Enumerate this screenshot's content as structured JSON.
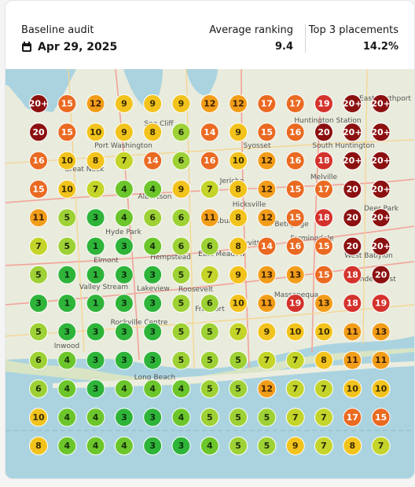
{
  "header": {
    "audit_label": "Baseline audit",
    "date": "Apr 29, 2025",
    "avg_label": "Average ranking",
    "avg_value": "9.4",
    "top3_label": "Top 3 placements",
    "top3_value": "14.2%"
  },
  "map": {
    "places": [
      "Port Washington",
      "Great Neck",
      "Sea Cliff",
      "Syosset",
      "Huntington Station",
      "South Huntington",
      "Jericho",
      "Hicksville",
      "Melville",
      "Albertson",
      "Salisbury",
      "Hyde Park",
      "Elmont",
      "Hempstead",
      "East Meadow",
      "Levittown",
      "Old Bethpage",
      "Farmingdale",
      "West Babylon",
      "Lindenhurst",
      "Massapequa",
      "Valley Stream",
      "Lakeview",
      "Roosevelt",
      "Rockville Centre",
      "Freeport",
      "Inwood",
      "Long Beach",
      "Deer Park",
      "East Northport"
    ],
    "grid": [
      [
        "20+",
        "15",
        "12",
        "9",
        "9",
        "9",
        "12",
        "12",
        "17",
        "17",
        "19",
        "20+",
        "20+"
      ],
      [
        "20",
        "15",
        "10",
        "9",
        "8",
        "6",
        "14",
        "9",
        "15",
        "16",
        "20",
        "20+",
        "20+"
      ],
      [
        "16",
        "10",
        "8",
        "7",
        "14",
        "6",
        "16",
        "10",
        "12",
        "16",
        "18",
        "20+",
        "20+"
      ],
      [
        "15",
        "10",
        "7",
        "4",
        "4",
        "9",
        "7",
        "8",
        "12",
        "15",
        "17",
        "20",
        "20+"
      ],
      [
        "11",
        "5",
        "3",
        "4",
        "6",
        "6",
        "11",
        "8",
        "12",
        "15",
        "18",
        "20",
        "20+"
      ],
      [
        "7",
        "5",
        "1",
        "3",
        "4",
        "6",
        "6",
        "8",
        "14",
        "16",
        "15",
        "20",
        "20+"
      ],
      [
        "5",
        "1",
        "1",
        "3",
        "3",
        "5",
        "7",
        "9",
        "13",
        "13",
        "15",
        "18",
        "20"
      ],
      [
        "3",
        "1",
        "1",
        "3",
        "3",
        "5",
        "6",
        "10",
        "11",
        "19",
        "13",
        "18",
        "19"
      ],
      [
        "5",
        "3",
        "3",
        "3",
        "3",
        "5",
        "5",
        "7",
        "9",
        "10",
        "10",
        "11",
        "13"
      ],
      [
        "6",
        "4",
        "3",
        "3",
        "3",
        "5",
        "5",
        "5",
        "7",
        "7",
        "8",
        "11",
        "11"
      ],
      [
        "6",
        "4",
        "3",
        "4",
        "4",
        "4",
        "5",
        "5",
        "12",
        "7",
        "7",
        "10",
        "10"
      ],
      [
        "10",
        "4",
        "4",
        "3",
        "3",
        "4",
        "5",
        "5",
        "5",
        "7",
        "7",
        "17",
        "15"
      ],
      [
        "8",
        "4",
        "4",
        "4",
        "3",
        "3",
        "4",
        "5",
        "5",
        "9",
        "7",
        "8",
        "7"
      ]
    ]
  }
}
